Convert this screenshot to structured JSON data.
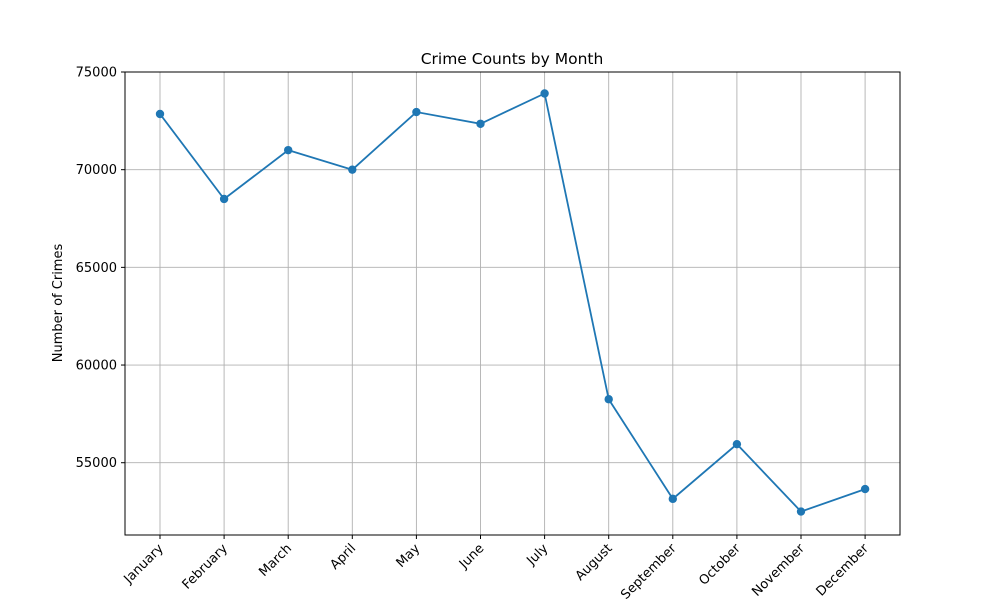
{
  "chart_data": {
    "type": "line",
    "title": "Crime Counts by Month",
    "xlabel": "",
    "ylabel": "Number of Crimes",
    "categories": [
      "January",
      "February",
      "March",
      "April",
      "May",
      "June",
      "July",
      "August",
      "September",
      "October",
      "November",
      "December"
    ],
    "series": [
      {
        "values": [
          72850,
          68500,
          71000,
          70000,
          72950,
          72350,
          73900,
          58250,
          53150,
          55950,
          52500,
          53650
        ],
        "color": "#1f77b4",
        "marker": "circle"
      }
    ],
    "yticks": [
      55000,
      60000,
      65000,
      70000,
      75000
    ],
    "ylim": [
      51300,
      75000
    ],
    "grid": true,
    "legend": "none"
  }
}
